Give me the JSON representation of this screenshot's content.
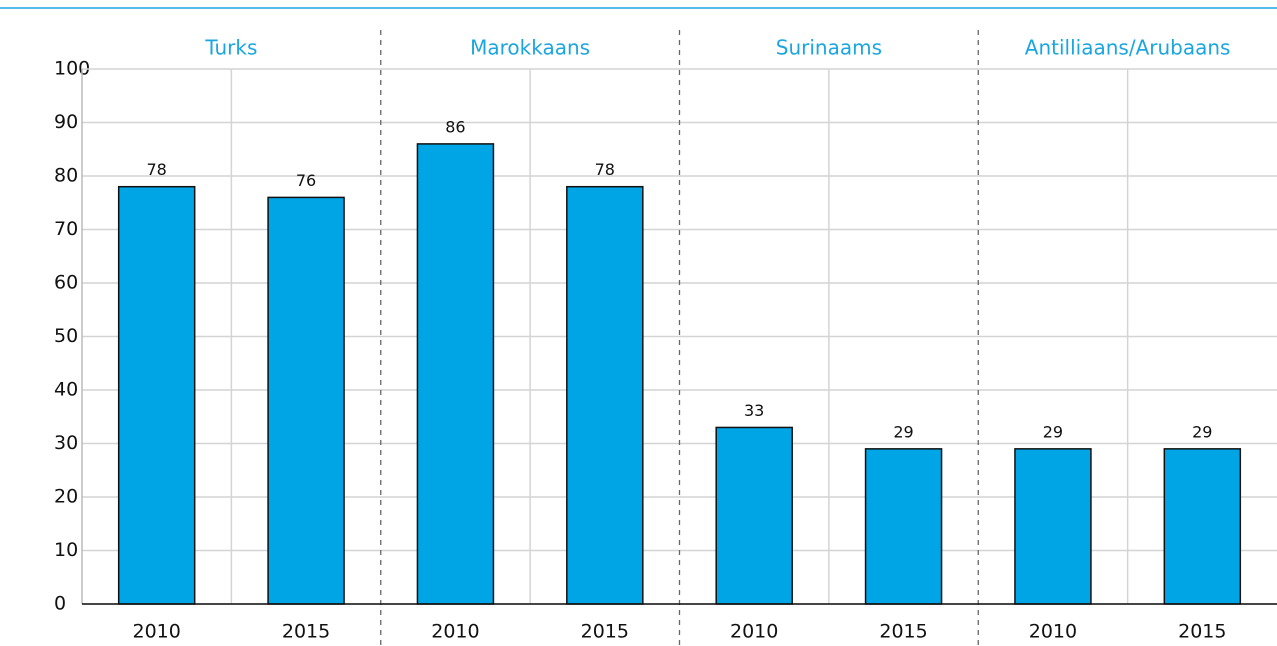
{
  "chart_data": {
    "type": "bar",
    "groups": [
      "Turks",
      "Marokkaans",
      "Surinaams",
      "Antilliaans/Arubaans"
    ],
    "categories": [
      "2010",
      "2015",
      "2010",
      "2015",
      "2010",
      "2015",
      "2010",
      "2015"
    ],
    "values": [
      78,
      76,
      86,
      78,
      33,
      29,
      29,
      29
    ],
    "color": "#00a5e6",
    "ylim": [
      0,
      100
    ],
    "yticks": [
      0,
      10,
      20,
      30,
      40,
      50,
      60,
      70,
      80,
      90,
      100
    ],
    "grid": true
  }
}
